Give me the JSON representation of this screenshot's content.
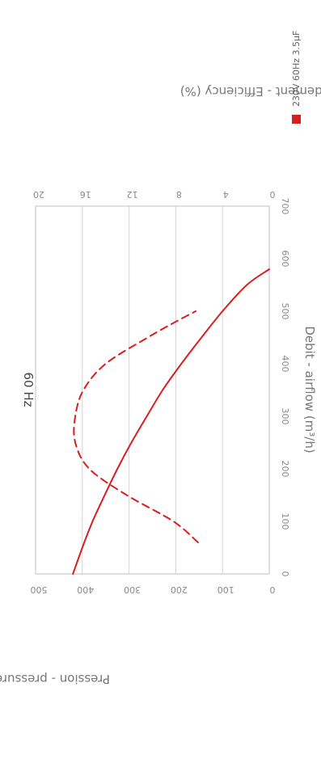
{
  "chart_data": {
    "type": "line",
    "title": "60 Hz",
    "orientation": "rotated-90-clockwise",
    "xlabel": "Debit - airflow (m³/h)",
    "ylabel": "Pression - pressure (Pa)",
    "y2label": "Rendement - Efficiency (%)",
    "xlim": [
      0,
      700
    ],
    "ylim": [
      0,
      500
    ],
    "y2lim": [
      0,
      20
    ],
    "x_ticks": [
      "0",
      "100",
      "200",
      "300",
      "400",
      "500",
      "600",
      "700"
    ],
    "y_ticks": [
      "0",
      "100",
      "200",
      "300",
      "400",
      "500"
    ],
    "y2_ticks": [
      "0",
      "4",
      "8",
      "12",
      "16",
      "20"
    ],
    "grid": true,
    "legend_position": "top-right",
    "legend": [
      "230V 60Hz 3.5µF"
    ],
    "series": [
      {
        "name": "230V 60Hz 3.5µF",
        "kind": "pressure",
        "axis": "y",
        "color": "#d81e1e",
        "style": "solid",
        "x": [
          0,
          50,
          100,
          150,
          200,
          250,
          300,
          350,
          400,
          450,
          500,
          550,
          580
        ],
        "y": [
          420,
          400,
          378,
          352,
          325,
          295,
          262,
          228,
          188,
          145,
          100,
          48,
          0
        ]
      },
      {
        "name": "230V 60Hz 3.5µF",
        "kind": "efficiency",
        "axis": "y2",
        "color": "#d81e1e",
        "style": "dashed",
        "x": [
          60,
          100,
          150,
          200,
          250,
          300,
          350,
          400,
          450,
          480,
          500
        ],
        "y": [
          6.1,
          8.2,
          12.2,
          15.4,
          16.6,
          16.6,
          15.9,
          14.0,
          10.4,
          8.0,
          6.3
        ]
      }
    ]
  }
}
